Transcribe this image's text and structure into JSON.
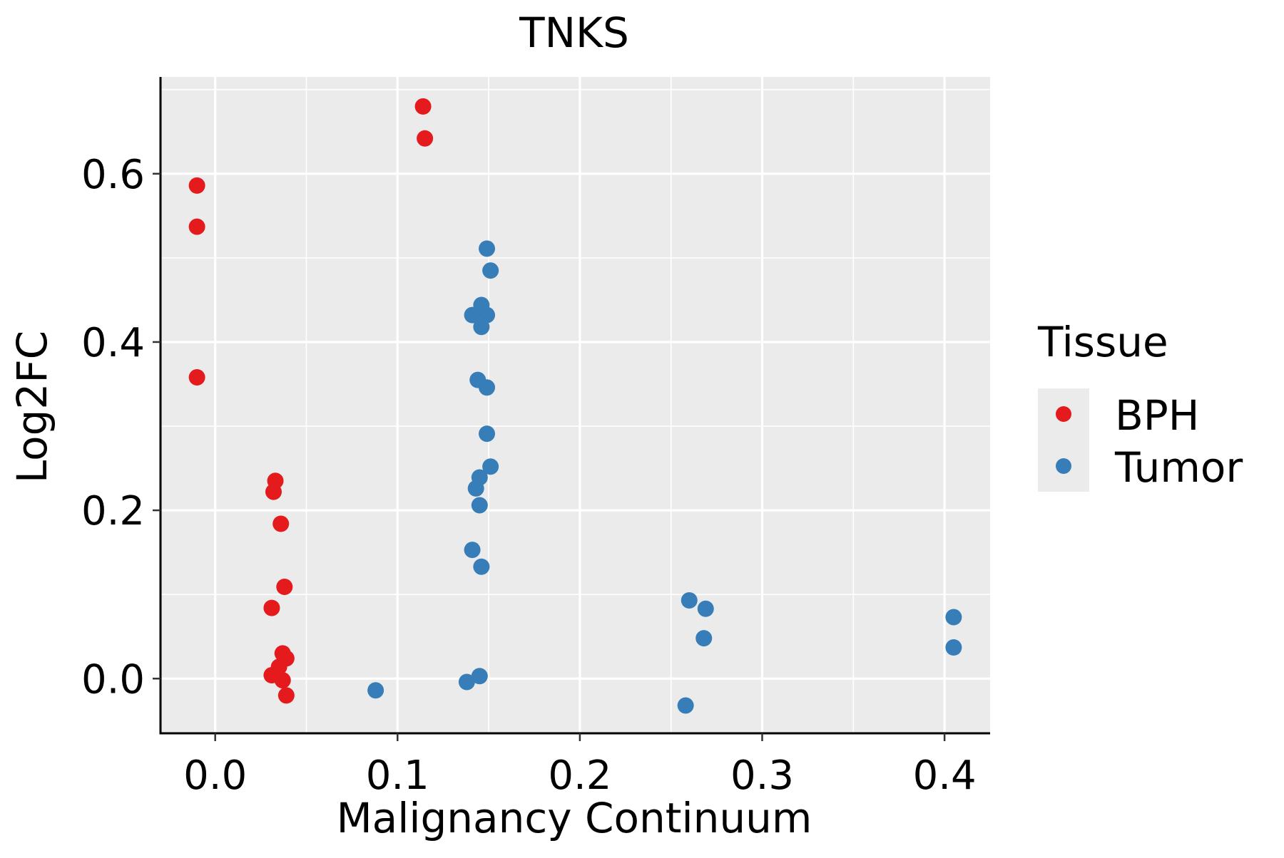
{
  "chart_data": {
    "type": "scatter",
    "title": "TNKS",
    "xlabel": "Malignancy Continuum",
    "ylabel": "Log2FC",
    "xlim": [
      -0.03,
      0.425
    ],
    "ylim": [
      -0.065,
      0.715
    ],
    "x_ticks": [
      0.0,
      0.1,
      0.2,
      0.3,
      0.4
    ],
    "x_tick_labels": [
      "0.0",
      "0.1",
      "0.2",
      "0.3",
      "0.4"
    ],
    "y_ticks": [
      0.0,
      0.2,
      0.4,
      0.6
    ],
    "y_tick_labels": [
      "0.0",
      "0.2",
      "0.4",
      "0.6"
    ],
    "x_minor": [
      0.05,
      0.15,
      0.25,
      0.35
    ],
    "y_minor": [
      0.1,
      0.3,
      0.5,
      0.7
    ],
    "grid": true,
    "legend": {
      "title": "Tissue",
      "position": "right",
      "entries": [
        "BPH",
        "Tumor"
      ]
    },
    "series": [
      {
        "name": "BPH",
        "color": "#E41A1C",
        "points": [
          [
            -0.01,
            0.586
          ],
          [
            -0.01,
            0.537
          ],
          [
            -0.01,
            0.358
          ],
          [
            0.114,
            0.68
          ],
          [
            0.115,
            0.642
          ],
          [
            0.033,
            0.235
          ],
          [
            0.032,
            0.222
          ],
          [
            0.036,
            0.184
          ],
          [
            0.038,
            0.109
          ],
          [
            0.031,
            0.084
          ],
          [
            0.037,
            0.03
          ],
          [
            0.039,
            0.024
          ],
          [
            0.035,
            0.014
          ],
          [
            0.031,
            0.004
          ],
          [
            0.037,
            -0.002
          ],
          [
            0.039,
            -0.02
          ]
        ]
      },
      {
        "name": "Tumor",
        "color": "#377EB8",
        "points": [
          [
            0.149,
            0.511
          ],
          [
            0.151,
            0.485
          ],
          [
            0.146,
            0.444
          ],
          [
            0.141,
            0.432
          ],
          [
            0.149,
            0.432
          ],
          [
            0.146,
            0.418
          ],
          [
            0.144,
            0.355
          ],
          [
            0.149,
            0.346
          ],
          [
            0.149,
            0.291
          ],
          [
            0.151,
            0.252
          ],
          [
            0.145,
            0.239
          ],
          [
            0.143,
            0.226
          ],
          [
            0.145,
            0.206
          ],
          [
            0.141,
            0.153
          ],
          [
            0.146,
            0.133
          ],
          [
            0.145,
            0.003
          ],
          [
            0.138,
            -0.004
          ],
          [
            0.088,
            -0.014
          ],
          [
            0.26,
            0.093
          ],
          [
            0.269,
            0.083
          ],
          [
            0.268,
            0.048
          ],
          [
            0.258,
            -0.032
          ],
          [
            0.405,
            0.073
          ],
          [
            0.405,
            0.037
          ]
        ]
      }
    ]
  }
}
